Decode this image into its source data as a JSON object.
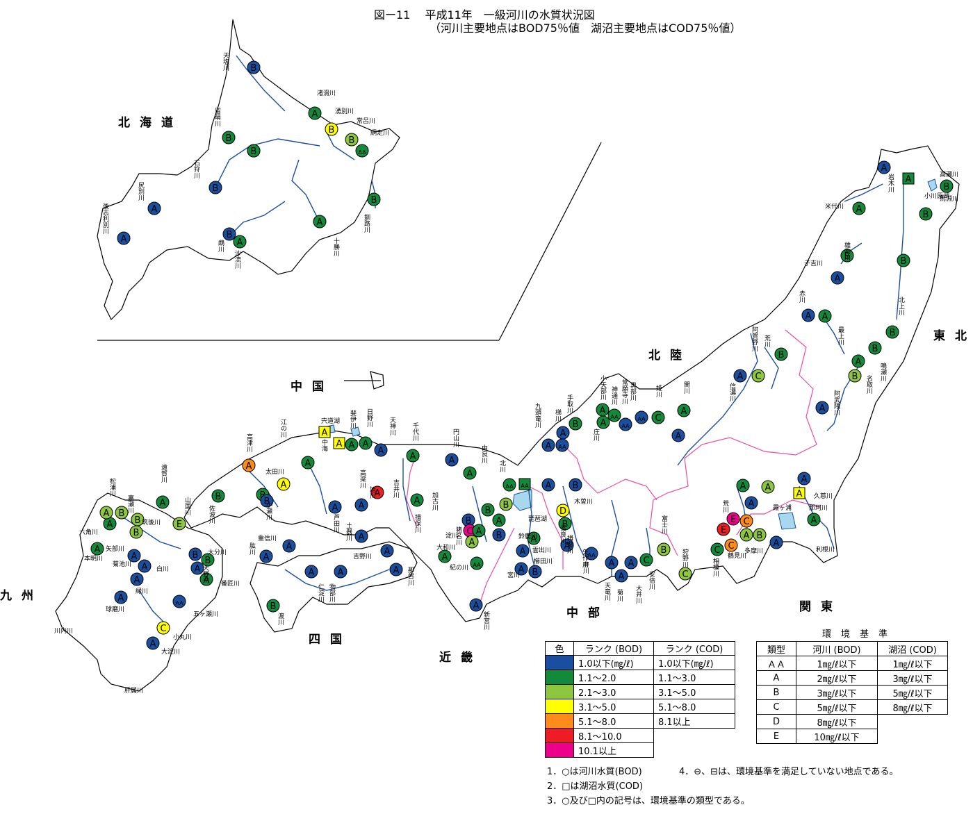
{
  "title": {
    "line1": "図ー11　 平成11年　一級河川の水質状況図",
    "line2": "（河川主要地点はBOD75％値　湖沼主要地点はCOD75％値）"
  },
  "colors": {
    "r1": "#1a4fa0",
    "r2": "#138a3a",
    "r3": "#8dc63f",
    "r4": "#ffff00",
    "r5": "#ff8c1a",
    "r6": "#ee1c24",
    "r7": "#ec008c",
    "river": "#1a4fa0",
    "lake": "#a8d8ee",
    "boundary": "#ec4ba2"
  },
  "regions": {
    "hokkaido": "北海道",
    "tohoku": "東北",
    "hokuriku": "北陸",
    "kanto": "関東",
    "chubu": "中部",
    "kinki": "近畿",
    "chugoku": "中国",
    "shikoku": "四国",
    "kyushu": "九州"
  },
  "rivers": [
    "天塩川",
    "留萌川",
    "石狩川",
    "尻別川",
    "後志利別川",
    "鵡川",
    "沙流川",
    "渚滑川",
    "湧別川",
    "常呂川",
    "網走川",
    "釧路川",
    "十勝川",
    "高瀬川",
    "岩木川",
    "小川原湖",
    "馬淵川",
    "米代川",
    "雄物川",
    "子吉川",
    "赤川",
    "最上川",
    "北上川",
    "鳴瀬川",
    "名取川",
    "阿武隈川",
    "阿賀野川",
    "荒川",
    "信濃川",
    "関川",
    "姫川",
    "黒部川",
    "常願寺川",
    "神通川",
    "小矢部川",
    "庄川",
    "手取川",
    "梯川",
    "九頭竜川",
    "木曽川",
    "長良川",
    "揖斐川",
    "豊川",
    "矢作川",
    "天竜川",
    "菊川",
    "大井川",
    "安倍川",
    "富士川",
    "狩野川",
    "相模川",
    "鶴見川",
    "多摩川",
    "荒川",
    "利根川",
    "久慈川",
    "那珂川",
    "霞ヶ浦",
    "由良川",
    "北川",
    "琵琶湖",
    "淀川",
    "大和川",
    "紀の川",
    "猪名川",
    "加古川",
    "揖保川",
    "円山川",
    "新宮川",
    "鈴鹿川",
    "雲出川",
    "櫛田川",
    "宮川",
    "千代川",
    "天神川",
    "日野川",
    "宍道湖",
    "中海",
    "斐伊川",
    "江の川",
    "高津川",
    "太田川",
    "小瀬川",
    "佐波川",
    "芦田川",
    "高梁川",
    "旭川",
    "吉井川",
    "重信川",
    "肱川",
    "土器川",
    "吉野川",
    "那賀川",
    "物部川",
    "仁淀川",
    "渡川",
    "遠賀川",
    "山国川",
    "松浦川",
    "嘉瀬川",
    "六角川",
    "筑後川",
    "矢部川",
    "本明川",
    "菊池川",
    "白川",
    "緑川",
    "大分川",
    "大野川",
    "番匠川",
    "五ヶ瀬川",
    "球磨川",
    "川内川",
    "小丸川",
    "大淀川",
    "肝属川"
  ],
  "legend": {
    "headers": [
      "色",
      "ランク (BOD)",
      "ランク (COD)"
    ],
    "rows": [
      {
        "color": "#1a4fa0",
        "bod": "1.0以下(㎎/ℓ)",
        "cod": "1.0以下(㎎/ℓ)"
      },
      {
        "color": "#138a3a",
        "bod": "1.1～2.0",
        "cod": "1.1～3.0"
      },
      {
        "color": "#8dc63f",
        "bod": "2.1～3.0",
        "cod": "3.1～5.0"
      },
      {
        "color": "#ffff00",
        "bod": "3.1～5.0",
        "cod": "5.1～8.0"
      },
      {
        "color": "#ff8c1a",
        "bod": "5.1～8.0",
        "cod": "8.1以上"
      },
      {
        "color": "#ee1c24",
        "bod": "8.1～10.0",
        "cod": ""
      },
      {
        "color": "#ec008c",
        "bod": "10.1以上",
        "cod": ""
      }
    ]
  },
  "standards": {
    "heading": "環境基準",
    "headers": [
      "類型",
      "河川 (BOD)",
      "湖沼 (COD)"
    ],
    "rows": [
      {
        "type": "ＡＡ",
        "river": "1㎎/ℓ以下",
        "lake": "1㎎/ℓ以下"
      },
      {
        "type": "A",
        "river": "2㎎/ℓ以下",
        "lake": "3㎎/ℓ以下"
      },
      {
        "type": "B",
        "river": "3㎎/ℓ以下",
        "lake": "5㎎/ℓ以下"
      },
      {
        "type": "C",
        "river": "5㎎/ℓ以下",
        "lake": "8㎎/ℓ以下"
      },
      {
        "type": "D",
        "river": "8㎎/ℓ以下",
        "lake": ""
      },
      {
        "type": "E",
        "river": "10㎎/ℓ以下",
        "lake": ""
      }
    ]
  },
  "notes": {
    "n1": "1．○は河川水質(BOD)",
    "n2": "2．□は湖沼水質(COD)",
    "n3": "3．○及び□内の記号は、環境基準の類型である。",
    "n4": "4．⊖、⊟は、環境基準を満足していない地点である。"
  },
  "markers": [
    {
      "t": "B",
      "r": 1
    },
    {
      "t": "B",
      "r": 2
    },
    {
      "t": "B",
      "r": 2
    },
    {
      "t": "B",
      "r": 2
    },
    {
      "t": "B",
      "r": 1
    },
    {
      "t": "A",
      "r": 1
    },
    {
      "t": "A",
      "r": 1
    },
    {
      "t": "B",
      "r": 1
    },
    {
      "t": "A",
      "r": 2
    },
    {
      "t": "A",
      "r": 2
    },
    {
      "t": "B",
      "r": 4
    },
    {
      "t": "B",
      "r": 3
    },
    {
      "t": "AA",
      "r": 2
    },
    {
      "t": "B",
      "r": 2
    },
    {
      "t": "A",
      "r": 2
    },
    {
      "t": "A",
      "r": 1
    },
    {
      "t": "A",
      "r": 2,
      "sq": true
    },
    {
      "t": "B",
      "r": 2
    },
    {
      "t": "B",
      "r": 2
    },
    {
      "t": "A",
      "r": 2
    },
    {
      "t": "B",
      "r": 2
    },
    {
      "t": "B",
      "r": 2
    },
    {
      "t": "A",
      "r": 1
    },
    {
      "t": "A",
      "r": 1
    },
    {
      "t": "A",
      "r": 2
    },
    {
      "t": "B",
      "r": 2
    },
    {
      "t": "B",
      "r": 2
    },
    {
      "t": "A",
      "r": 2
    },
    {
      "t": "B",
      "r": 3
    },
    {
      "t": "A",
      "r": 1
    },
    {
      "t": "B",
      "r": 2
    },
    {
      "t": "A",
      "r": 1
    },
    {
      "t": "C",
      "r": 3
    },
    {
      "t": "A",
      "r": 2
    },
    {
      "t": "A",
      "r": 2
    },
    {
      "t": "AA",
      "r": 2
    },
    {
      "t": "AA",
      "r": 1
    },
    {
      "t": "AA",
      "r": 1
    },
    {
      "t": "C",
      "r": 2
    },
    {
      "t": "A",
      "r": 2
    },
    {
      "t": "A",
      "r": 1
    },
    {
      "t": "B",
      "r": 2
    },
    {
      "t": "A",
      "r": 1
    },
    {
      "t": "A",
      "r": 1
    },
    {
      "t": "AA",
      "r": 1
    },
    {
      "t": "A",
      "r": 1
    },
    {
      "t": "B",
      "r": 1
    },
    {
      "t": "D",
      "r": 4
    },
    {
      "t": "B",
      "r": 2
    },
    {
      "t": "A",
      "r": 1
    },
    {
      "t": "AA",
      "r": 1
    },
    {
      "t": "A",
      "r": 1
    },
    {
      "t": "A",
      "r": 1
    },
    {
      "t": "C",
      "r": 2
    },
    {
      "t": "A",
      "r": 1
    },
    {
      "t": "B",
      "r": 3
    },
    {
      "t": "C",
      "r": 3
    },
    {
      "t": "C",
      "r": 2
    },
    {
      "t": "E",
      "r": 6
    },
    {
      "t": "C",
      "r": 5
    },
    {
      "t": "E",
      "r": 7
    },
    {
      "t": "C",
      "r": 5
    },
    {
      "t": "A",
      "r": 3
    },
    {
      "t": "B",
      "r": 3
    },
    {
      "t": "A",
      "r": 2
    },
    {
      "t": "A",
      "r": 3
    },
    {
      "t": "A",
      "r": 1
    },
    {
      "t": "A",
      "r": 1
    },
    {
      "t": "A",
      "r": 4,
      "sq": true
    },
    {
      "t": "A",
      "r": 2
    },
    {
      "t": "A",
      "r": 1
    },
    {
      "t": "AA",
      "r": 2
    },
    {
      "t": "AA",
      "r": 2,
      "sq": true
    },
    {
      "t": "B",
      "r": 3
    },
    {
      "t": "B",
      "r": 2
    },
    {
      "t": "A",
      "r": 2
    },
    {
      "t": "B",
      "r": 1
    },
    {
      "t": "B",
      "r": 1
    },
    {
      "t": "C",
      "r": 7
    },
    {
      "t": "A",
      "r": 3
    },
    {
      "t": "A",
      "r": 2
    },
    {
      "t": "A",
      "r": 2
    },
    {
      "t": "A",
      "r": 1
    },
    {
      "t": "A",
      "r": 1
    },
    {
      "t": "B",
      "r": 1
    },
    {
      "t": "A",
      "r": 1
    },
    {
      "t": "A",
      "r": 2
    },
    {
      "t": "A",
      "r": 2
    },
    {
      "t": "AA",
      "r": 2
    },
    {
      "t": "A",
      "r": 4,
      "sq": true
    },
    {
      "t": "A",
      "r": 4,
      "sq": true
    },
    {
      "t": "A",
      "r": 2
    },
    {
      "t": "A",
      "r": 2
    },
    {
      "t": "A",
      "r": 1
    },
    {
      "t": "A",
      "r": 2
    },
    {
      "t": "A",
      "r": 2
    },
    {
      "t": "A",
      "r": 5
    },
    {
      "t": "B",
      "r": 2
    },
    {
      "t": "B",
      "r": 2
    },
    {
      "t": "A",
      "r": 4
    },
    {
      "t": "B",
      "r": 1
    },
    {
      "t": "A",
      "r": 1
    },
    {
      "t": "A",
      "r": 1
    },
    {
      "t": "A",
      "r": 6
    },
    {
      "t": "A",
      "r": 1
    },
    {
      "t": "A",
      "r": 1
    },
    {
      "t": "A",
      "r": 1
    },
    {
      "t": "A",
      "r": 1
    },
    {
      "t": "A",
      "r": 1
    },
    {
      "t": "A",
      "r": 1
    },
    {
      "t": "A",
      "r": 1
    },
    {
      "t": "B",
      "r": 2
    },
    {
      "t": "A",
      "r": 1
    },
    {
      "t": "A",
      "r": 2
    },
    {
      "t": "A",
      "r": 2
    },
    {
      "t": "E",
      "r": 3
    },
    {
      "t": "B",
      "r": 3
    },
    {
      "t": "B",
      "r": 3
    },
    {
      "t": "A",
      "r": 2
    },
    {
      "t": "A",
      "r": 3
    },
    {
      "t": "B",
      "r": 3
    },
    {
      "t": "A",
      "r": 2
    },
    {
      "t": "A",
      "r": 1
    },
    {
      "t": "A",
      "r": 1
    },
    {
      "t": "A",
      "r": 1
    },
    {
      "t": "B",
      "r": 1
    },
    {
      "t": "B",
      "r": 2
    },
    {
      "t": "A",
      "r": 1
    },
    {
      "t": "A",
      "r": 2
    },
    {
      "t": "AA",
      "r": 1
    },
    {
      "t": "C",
      "r": 4
    },
    {
      "t": "A",
      "r": 1
    },
    {
      "t": "A",
      "r": 1
    }
  ]
}
